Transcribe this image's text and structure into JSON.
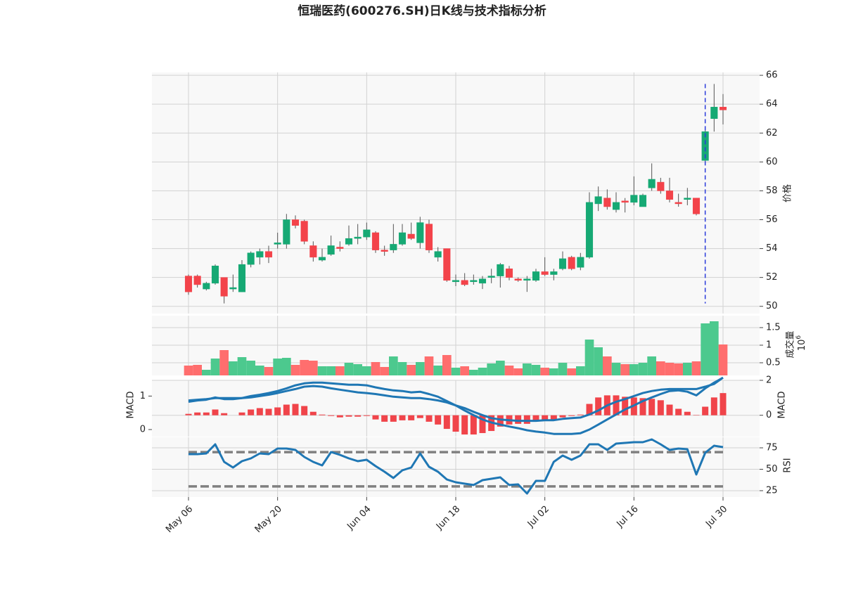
{
  "chart_data": {
    "type": "candlestick",
    "title": "恒瑞医药(600276.SH)日K线与技术指标分析",
    "categories": [
      "May 06",
      null,
      null,
      null,
      null,
      null,
      null,
      null,
      null,
      null,
      "May 20",
      null,
      null,
      null,
      null,
      null,
      null,
      null,
      null,
      null,
      "Jun 04",
      null,
      null,
      null,
      null,
      null,
      null,
      null,
      null,
      null,
      "Jun 18",
      null,
      null,
      null,
      null,
      null,
      null,
      null,
      null,
      null,
      "Jul 02",
      null,
      null,
      null,
      null,
      null,
      null,
      null,
      null,
      null,
      "Jul 16",
      null,
      null,
      null,
      null,
      null,
      null,
      null,
      null,
      null,
      "Jul 30"
    ],
    "grid": true,
    "up_color": "#16a974",
    "down_color": "#f3434a",
    "vline": {
      "index": 58,
      "color": "#2b3bdb"
    },
    "price": {
      "ylabel": "价格",
      "ylim": [
        49.5,
        66.2
      ],
      "yticks": [
        50,
        52,
        54,
        56,
        58,
        60,
        62,
        64,
        66
      ],
      "open": [
        52.1,
        52.1,
        51.2,
        51.6,
        52.0,
        51.2,
        51.0,
        52.9,
        53.4,
        53.8,
        54.3,
        54.3,
        56.0,
        55.9,
        54.2,
        53.2,
        53.6,
        54.1,
        54.3,
        54.7,
        54.8,
        55.1,
        53.9,
        53.9,
        54.3,
        55.0,
        54.4,
        55.7,
        53.4,
        54.0,
        51.7,
        51.8,
        51.7,
        51.6,
        52.0,
        52.1,
        52.6,
        51.9,
        51.8,
        51.8,
        52.4,
        52.2,
        52.6,
        53.4,
        52.7,
        53.4,
        57.1,
        57.5,
        56.7,
        57.3,
        57.2,
        56.9,
        58.2,
        58.6,
        58.0,
        57.2,
        57.4,
        57.5,
        60.1,
        63.0,
        63.8
      ],
      "high": [
        52.2,
        52.2,
        51.7,
        52.9,
        52.0,
        52.2,
        53.2,
        53.8,
        54.0,
        54.2,
        55.1,
        56.4,
        56.3,
        56.0,
        54.5,
        54.0,
        54.9,
        54.5,
        55.6,
        55.7,
        55.8,
        55.2,
        54.2,
        55.7,
        55.7,
        55.8,
        56.2,
        56.0,
        54.1,
        54.0,
        52.2,
        52.3,
        52.2,
        52.1,
        52.6,
        53.0,
        52.8,
        52.0,
        52.1,
        52.6,
        53.4,
        52.6,
        53.8,
        53.5,
        53.7,
        57.9,
        58.3,
        58.1,
        57.9,
        57.5,
        59.0,
        57.8,
        59.9,
        58.9,
        58.9,
        57.8,
        58.2,
        57.5,
        62.2,
        65.4,
        64.7
      ],
      "low": [
        50.8,
        51.3,
        51.1,
        51.5,
        50.2,
        51.0,
        51.0,
        52.7,
        52.9,
        53.0,
        54.0,
        54.0,
        55.4,
        54.3,
        53.1,
        53.1,
        53.5,
        53.8,
        54.2,
        54.3,
        54.6,
        53.7,
        53.5,
        53.7,
        54.2,
        54.6,
        54.0,
        53.7,
        53.1,
        51.7,
        51.4,
        51.4,
        51.5,
        51.2,
        51.6,
        51.3,
        51.8,
        51.7,
        51.0,
        51.7,
        52.1,
        51.8,
        52.5,
        52.5,
        52.5,
        53.3,
        56.6,
        56.7,
        56.5,
        56.5,
        57.0,
        56.9,
        58.0,
        57.8,
        57.2,
        56.9,
        57.0,
        56.3,
        59.9,
        62.1,
        62.6
      ],
      "close": [
        51.0,
        51.5,
        51.6,
        52.8,
        50.7,
        51.3,
        52.9,
        53.7,
        53.8,
        53.4,
        54.4,
        56.0,
        55.6,
        54.5,
        53.4,
        53.4,
        54.2,
        54.0,
        54.7,
        54.8,
        55.3,
        53.9,
        53.8,
        54.3,
        55.1,
        54.7,
        55.8,
        53.9,
        53.8,
        51.8,
        51.8,
        51.5,
        51.8,
        51.9,
        52.1,
        52.9,
        52.0,
        51.8,
        51.9,
        52.4,
        52.2,
        52.4,
        53.3,
        52.6,
        53.4,
        57.2,
        57.6,
        56.9,
        57.2,
        57.2,
        57.7,
        57.7,
        58.8,
        58.0,
        57.4,
        57.1,
        57.5,
        56.4,
        62.1,
        63.8,
        63.6
      ]
    },
    "volume": {
      "ylabel": "成交量",
      "offset_base": "10",
      "offset_exponent": "6",
      "ylim": [
        0.14,
        1.84
      ],
      "yticks": [
        0.5,
        1.0,
        1.5
      ],
      "up_color": "#4cc98e",
      "down_color": "#ff6e6e",
      "values": [
        0.42,
        0.44,
        0.3,
        0.62,
        0.86,
        0.54,
        0.66,
        0.56,
        0.42,
        0.38,
        0.62,
        0.64,
        0.44,
        0.58,
        0.56,
        0.4,
        0.4,
        0.4,
        0.5,
        0.46,
        0.4,
        0.52,
        0.38,
        0.68,
        0.52,
        0.44,
        0.52,
        0.68,
        0.42,
        0.72,
        0.36,
        0.4,
        0.3,
        0.36,
        0.48,
        0.56,
        0.42,
        0.34,
        0.48,
        0.44,
        0.36,
        0.34,
        0.5,
        0.34,
        0.4,
        1.16,
        0.94,
        0.68,
        0.5,
        0.46,
        0.46,
        0.5,
        0.68,
        0.54,
        0.5,
        0.48,
        0.5,
        0.54,
        1.62,
        1.68,
        1.02
      ]
    },
    "macd": {
      "ylabel": "MACD",
      "ylim": [
        -0.21,
        1.47
      ],
      "yticks": [
        0,
        1
      ],
      "y2label": "MACD",
      "y2lim": [
        -1.22,
        2
      ],
      "y2ticks": [
        0,
        2
      ],
      "line_color": "#1f77b4",
      "hist_color": "#f0444a",
      "dif": [
        0.83,
        0.87,
        0.89,
        0.96,
        0.91,
        0.91,
        0.94,
        1.0,
        1.04,
        1.09,
        1.15,
        1.23,
        1.32,
        1.38,
        1.4,
        1.4,
        1.38,
        1.36,
        1.34,
        1.34,
        1.32,
        1.26,
        1.21,
        1.17,
        1.15,
        1.11,
        1.13,
        1.06,
        0.98,
        0.85,
        0.72,
        0.57,
        0.43,
        0.3,
        0.21,
        0.15,
        0.09,
        0.04,
        -0.02,
        -0.06,
        -0.09,
        -0.13,
        -0.13,
        -0.13,
        -0.11,
        0,
        0.15,
        0.3,
        0.45,
        0.6,
        0.72,
        0.85,
        0.96,
        1.06,
        1.15,
        1.17,
        1.13,
        1.02,
        1.23,
        1.4,
        1.55
      ],
      "dea": [
        0.87,
        0.89,
        0.91,
        0.94,
        0.94,
        0.94,
        0.94,
        0.96,
        1.0,
        1.04,
        1.09,
        1.15,
        1.21,
        1.28,
        1.3,
        1.28,
        1.23,
        1.19,
        1.15,
        1.11,
        1.09,
        1.06,
        1.02,
        0.98,
        0.96,
        0.94,
        0.94,
        0.91,
        0.87,
        0.81,
        0.72,
        0.64,
        0.53,
        0.43,
        0.34,
        0.3,
        0.28,
        0.26,
        0.26,
        0.26,
        0.28,
        0.28,
        0.32,
        0.34,
        0.36,
        0.45,
        0.57,
        0.72,
        0.83,
        0.91,
        1.0,
        1.09,
        1.15,
        1.19,
        1.21,
        1.21,
        1.21,
        1.21,
        1.28,
        1.36,
        1.55
      ],
      "hist": [
        0.08,
        0.16,
        0.16,
        0.33,
        0.12,
        0,
        0.16,
        0.33,
        0.41,
        0.37,
        0.45,
        0.61,
        0.65,
        0.53,
        0.2,
        0.04,
        -0.04,
        -0.12,
        -0.08,
        -0.08,
        -0.04,
        -0.24,
        -0.37,
        -0.37,
        -0.29,
        -0.29,
        -0.16,
        -0.37,
        -0.53,
        -0.78,
        -0.94,
        -1.1,
        -1.1,
        -1.02,
        -0.9,
        -0.65,
        -0.53,
        -0.49,
        -0.49,
        -0.33,
        -0.29,
        -0.24,
        -0.12,
        -0.04,
        0.04,
        0.65,
        1.02,
        1.14,
        1.14,
        1.06,
        1.02,
        0.98,
        0.94,
        0.86,
        0.61,
        0.37,
        0.2,
        0.02,
        0.49,
        1.02,
        1.27
      ]
    },
    "rsi": {
      "ylabel": "RSI",
      "ylim": [
        17.6,
        87.3
      ],
      "yticks": [
        25,
        50,
        75
      ],
      "line_color": "#1f77b4",
      "level_color": "#808080",
      "levels": [
        70,
        30
      ],
      "values": [
        67.6,
        67.6,
        68.4,
        79.1,
        58.6,
        52.0,
        59.4,
        62.7,
        68.4,
        67.6,
        74.2,
        74.2,
        72.5,
        64.3,
        58.6,
        54.5,
        70.1,
        66.8,
        62.7,
        59.4,
        61.1,
        53.7,
        47.1,
        39.8,
        48.8,
        52.0,
        68.4,
        52.9,
        47.1,
        38.1,
        34.8,
        33.2,
        31.6,
        37.3,
        38.9,
        40.6,
        31.6,
        32.4,
        21.7,
        36.5,
        36.5,
        58.6,
        66.0,
        61.1,
        66.0,
        79.1,
        79.1,
        72.5,
        79.9,
        80.7,
        81.6,
        81.6,
        84.8,
        79.1,
        72.5,
        74.2,
        73.4,
        43.9,
        69.3,
        77.5,
        75.8
      ]
    }
  }
}
